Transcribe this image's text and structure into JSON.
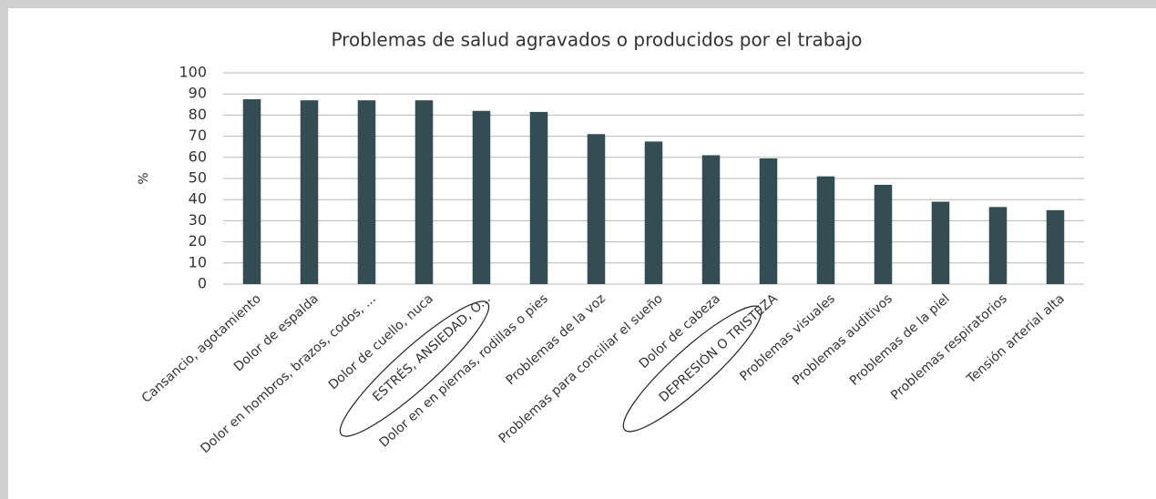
{
  "chart_data": {
    "type": "bar",
    "title": "Problemas de salud agravados o producidos por el trabajo",
    "y_label": "%",
    "categories": [
      "Cansancio, agotamiento",
      "Dolor de espalda",
      "Dolor en hombros, brazos, codos, ...",
      "Dolor de cuello, nuca",
      "ESTRÉS, ANSIEDAD, O...",
      "Dolor en en piernas, rodillas o pies",
      "Problemas de la voz",
      "Problemas para conciliar el sueño",
      "Dolor de cabeza",
      "DEPRESIÓN O TRISTEZA",
      "Problemas visuales",
      "Problemas auditivos",
      "Problemas de la piel",
      "Problemas respiratorios",
      "Tensión arterial alta"
    ],
    "values": [
      87.5,
      87,
      87,
      87,
      82,
      81.5,
      71,
      67.5,
      61,
      59.5,
      51,
      47,
      39,
      36.5,
      35
    ],
    "color": "#344d52",
    "ylim": [
      0,
      100
    ],
    "yticks": [
      0,
      10,
      20,
      30,
      40,
      50,
      60,
      70,
      80,
      90,
      100
    ],
    "grid": true
  }
}
